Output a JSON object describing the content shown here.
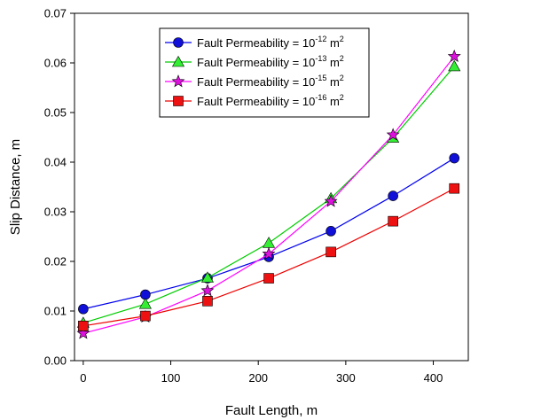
{
  "chart_data": {
    "type": "line",
    "xlabel": "Fault Length, m",
    "ylabel": "Slip Distance, m",
    "xlim": [
      -10,
      440
    ],
    "ylim": [
      0,
      0.07
    ],
    "xticks": [
      0,
      100,
      200,
      300,
      400
    ],
    "yticks": [
      0.0,
      0.01,
      0.02,
      0.03,
      0.04,
      0.05,
      0.06,
      0.07
    ],
    "xtick_labels": [
      "0",
      "100",
      "200",
      "300",
      "400"
    ],
    "ytick_labels": [
      "0.00",
      "0.01",
      "0.02",
      "0.03",
      "0.04",
      "0.05",
      "0.06",
      "0.07"
    ],
    "grid": false,
    "legend_position": "top-left",
    "x": [
      0,
      71,
      142,
      212,
      283,
      354,
      424
    ],
    "series": [
      {
        "name_prefix": "Fault Permeability = 10",
        "name_exp": "-12",
        "name_unit": " m",
        "name_unit_exp": "2",
        "marker": "circle",
        "color": "#0000ee",
        "marker_fill": "#1010d8",
        "values": [
          0.0104,
          0.0133,
          0.0166,
          0.0209,
          0.0261,
          0.0332,
          0.0408
        ]
      },
      {
        "name_prefix": "Fault Permeability = 10",
        "name_exp": "-13",
        "name_unit": " m",
        "name_unit_exp": "2",
        "marker": "triangle",
        "color": "#00cc00",
        "marker_fill": "#33ee33",
        "values": [
          0.0076,
          0.0114,
          0.0167,
          0.0237,
          0.0327,
          0.0449,
          0.0593
        ]
      },
      {
        "name_prefix": "Fault Permeability = 10",
        "name_exp": "-15",
        "name_unit": " m",
        "name_unit_exp": "2",
        "marker": "star",
        "color": "#ff00ff",
        "marker_fill": "#dd11dd",
        "values": [
          0.0055,
          0.0088,
          0.0141,
          0.0215,
          0.0321,
          0.0455,
          0.0613
        ]
      },
      {
        "name_prefix": "Fault Permeability = 10",
        "name_exp": "-16",
        "name_unit": " m",
        "name_unit_exp": "2",
        "marker": "square",
        "color": "#ee0000",
        "marker_fill": "#ee1111",
        "values": [
          0.007,
          0.009,
          0.012,
          0.0166,
          0.0219,
          0.0281,
          0.0347
        ]
      }
    ]
  }
}
